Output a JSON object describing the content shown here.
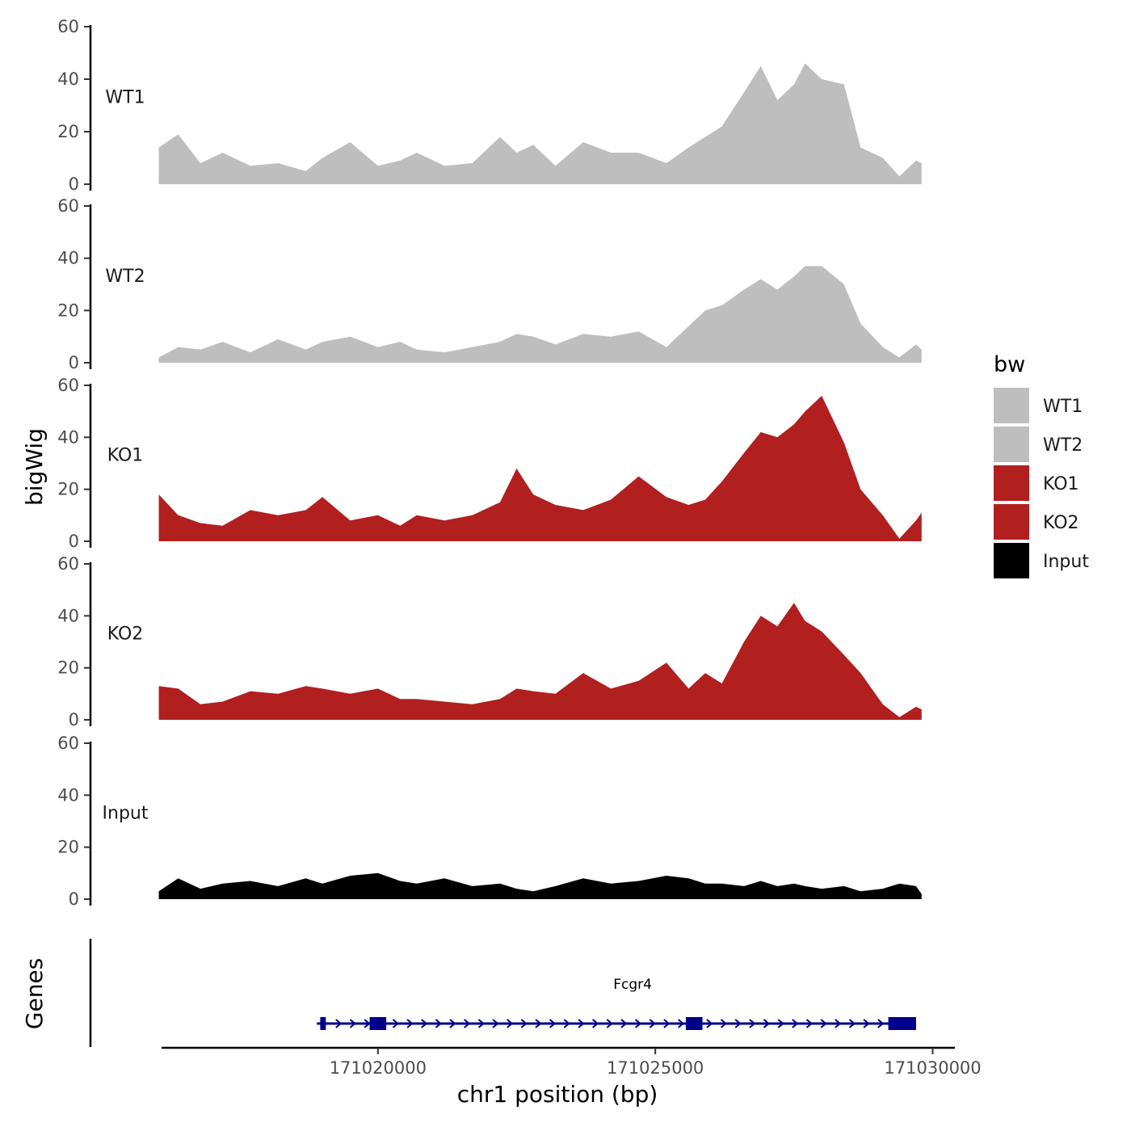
{
  "chart_data": {
    "type": "area",
    "title": "",
    "xlabel": "chr1 position (bp)",
    "ylabel": "bigWig",
    "genes_label": "Genes",
    "xlim": [
      171016100,
      171030400
    ],
    "ylim": [
      0,
      60
    ],
    "y_ticks": [
      0,
      20,
      40,
      60
    ],
    "x_ticks": [
      171020000,
      171025000,
      171030000
    ],
    "x_tick_labels": [
      "171020000",
      "171025000",
      "171030000"
    ],
    "legend": {
      "title": "bw",
      "position": "right"
    },
    "series": [
      {
        "name": "WT1",
        "color": "#bebebe",
        "x": [
          171016050,
          171016400,
          171016800,
          171017200,
          171017700,
          171018200,
          171018700,
          171019000,
          171019500,
          171020000,
          171020400,
          171020700,
          171021200,
          171021700,
          171022200,
          171022500,
          171022800,
          171023200,
          171023700,
          171024200,
          171024700,
          171025200,
          171025600,
          171025900,
          171026200,
          171026600,
          171026900,
          171027200,
          171027500,
          171027700,
          171028000,
          171028400,
          171028700,
          171029100,
          171029400,
          171029700,
          171029800
        ],
        "values": [
          14,
          19,
          8,
          12,
          7,
          8,
          5,
          10,
          16,
          7,
          9,
          12,
          7,
          8,
          18,
          12,
          15,
          7,
          16,
          12,
          12,
          8,
          14,
          18,
          22,
          35,
          45,
          32,
          38,
          46,
          40,
          38,
          14,
          10,
          3,
          9,
          8
        ]
      },
      {
        "name": "WT2",
        "color": "#bebebe",
        "x": [
          171016050,
          171016400,
          171016800,
          171017200,
          171017700,
          171018200,
          171018700,
          171019000,
          171019500,
          171020000,
          171020400,
          171020700,
          171021200,
          171021700,
          171022200,
          171022500,
          171022800,
          171023200,
          171023700,
          171024200,
          171024700,
          171025200,
          171025600,
          171025900,
          171026200,
          171026600,
          171026900,
          171027200,
          171027500,
          171027700,
          171028000,
          171028400,
          171028700,
          171029100,
          171029400,
          171029700,
          171029800
        ],
        "values": [
          2,
          6,
          5,
          8,
          4,
          9,
          5,
          8,
          10,
          6,
          8,
          5,
          4,
          6,
          8,
          11,
          10,
          7,
          11,
          10,
          12,
          6,
          14,
          20,
          22,
          28,
          32,
          28,
          33,
          37,
          37,
          30,
          15,
          6,
          2,
          7,
          5
        ]
      },
      {
        "name": "KO1",
        "color": "#b21f1f",
        "x": [
          171016050,
          171016400,
          171016800,
          171017200,
          171017700,
          171018200,
          171018700,
          171019000,
          171019500,
          171020000,
          171020400,
          171020700,
          171021200,
          171021700,
          171022200,
          171022500,
          171022800,
          171023200,
          171023700,
          171024200,
          171024700,
          171025200,
          171025600,
          171025900,
          171026200,
          171026600,
          171026900,
          171027200,
          171027500,
          171027700,
          171028000,
          171028400,
          171028700,
          171029100,
          171029400,
          171029700,
          171029800
        ],
        "values": [
          18,
          10,
          7,
          6,
          12,
          10,
          12,
          17,
          8,
          10,
          6,
          10,
          8,
          10,
          15,
          28,
          18,
          14,
          12,
          16,
          25,
          17,
          14,
          16,
          23,
          34,
          42,
          40,
          45,
          50,
          56,
          38,
          20,
          10,
          1,
          8,
          11
        ]
      },
      {
        "name": "KO2",
        "color": "#b21f1f",
        "x": [
          171016050,
          171016400,
          171016800,
          171017200,
          171017700,
          171018200,
          171018700,
          171019000,
          171019500,
          171020000,
          171020400,
          171020700,
          171021200,
          171021700,
          171022200,
          171022500,
          171022800,
          171023200,
          171023700,
          171024200,
          171024700,
          171025200,
          171025600,
          171025900,
          171026200,
          171026600,
          171026900,
          171027200,
          171027500,
          171027700,
          171028000,
          171028400,
          171028700,
          171029100,
          171029400,
          171029700,
          171029800
        ],
        "values": [
          13,
          12,
          6,
          7,
          11,
          10,
          13,
          12,
          10,
          12,
          8,
          8,
          7,
          6,
          8,
          12,
          11,
          10,
          18,
          12,
          15,
          22,
          12,
          18,
          14,
          30,
          40,
          36,
          45,
          38,
          34,
          25,
          18,
          6,
          1,
          5,
          4
        ]
      },
      {
        "name": "Input",
        "color": "#000000",
        "x": [
          171016050,
          171016400,
          171016800,
          171017200,
          171017700,
          171018200,
          171018700,
          171019000,
          171019500,
          171020000,
          171020400,
          171020700,
          171021200,
          171021700,
          171022200,
          171022500,
          171022800,
          171023200,
          171023700,
          171024200,
          171024700,
          171025200,
          171025600,
          171025900,
          171026200,
          171026600,
          171026900,
          171027200,
          171027500,
          171027700,
          171028000,
          171028400,
          171028700,
          171029100,
          171029400,
          171029700,
          171029800
        ],
        "values": [
          3,
          8,
          4,
          6,
          7,
          5,
          8,
          6,
          9,
          10,
          7,
          6,
          8,
          5,
          6,
          4,
          3,
          5,
          8,
          6,
          7,
          9,
          8,
          6,
          6,
          5,
          7,
          5,
          6,
          5,
          4,
          5,
          3,
          4,
          6,
          5,
          2
        ]
      }
    ],
    "gene": {
      "name": "Fcgr4",
      "color": "#00008b",
      "start": 171018900,
      "end": 171029700,
      "strand": "+",
      "exons": [
        [
          171018960,
          171019060
        ],
        [
          171019850,
          171020150
        ],
        [
          171025550,
          171025850
        ],
        [
          171029200,
          171029700
        ]
      ]
    }
  }
}
